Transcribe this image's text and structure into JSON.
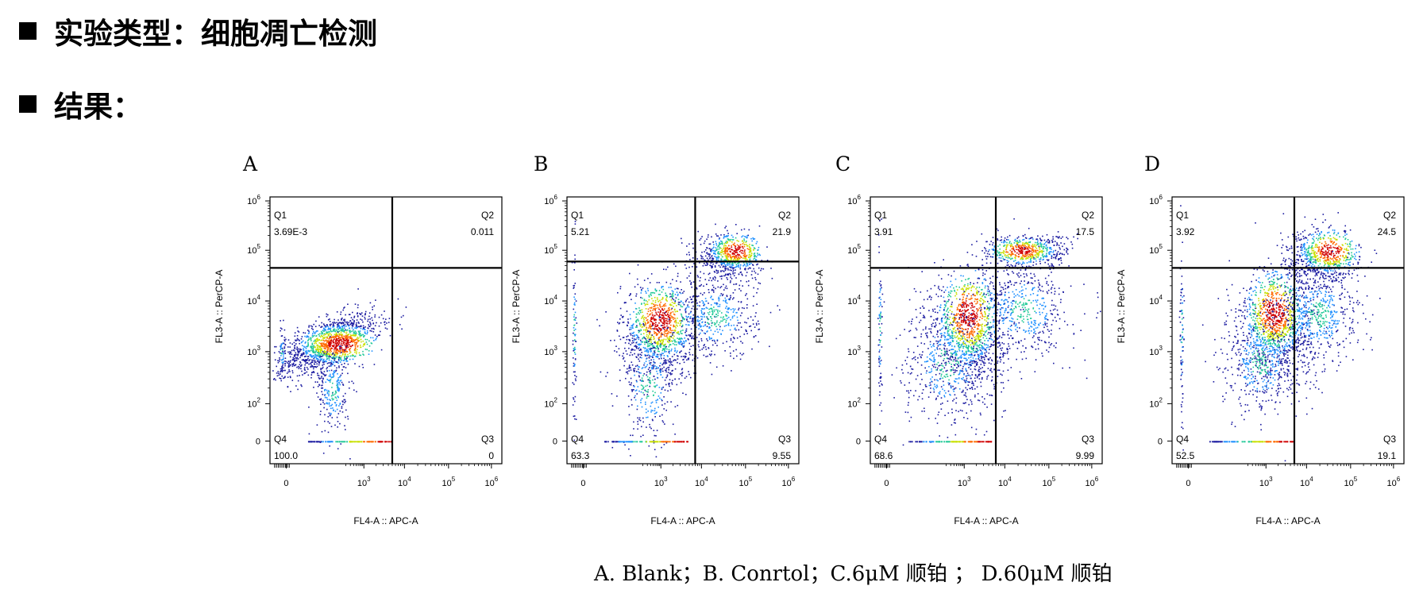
{
  "headings": {
    "experiment": "实验类型：细胞凋亡检测",
    "results": "结果："
  },
  "caption": "A. Blank；B. Conrtol；C.6μM 顺铂 ； D.60μM 顺铂",
  "colors": {
    "density_low": "#1a1aa0",
    "density_mid_low": "#1e90ff",
    "density_mid": "#20c997",
    "density_mid_high": "#c8e000",
    "density_high": "#ff6a00",
    "density_peak": "#d00000",
    "gate_lines": "#000000"
  },
  "chart_data": [
    {
      "type": "scatter",
      "panel": "A",
      "xlabel": "FL4-A :: APC-A",
      "ylabel": "FL3-A :: PerCP-A",
      "x_ticks": [
        "0",
        "10^3",
        "10^4",
        "10^5",
        "10^6"
      ],
      "y_ticks": [
        "0",
        "10^2",
        "10^3",
        "10^4",
        "10^5",
        "10^6"
      ],
      "quadrants": [
        {
          "name": "Q1",
          "value": "3.69E-3"
        },
        {
          "name": "Q2",
          "value": "0.011"
        },
        {
          "name": "Q3",
          "value": "0"
        },
        {
          "name": "Q4",
          "value": "100.0"
        }
      ],
      "gate": {
        "x": 5000,
        "y": 45000
      }
    },
    {
      "type": "scatter",
      "panel": "B",
      "xlabel": "FL4-A :: APC-A",
      "ylabel": "FL3-A :: PerCP-A",
      "x_ticks": [
        "0",
        "10^3",
        "10^4",
        "10^5",
        "10^6"
      ],
      "y_ticks": [
        "0",
        "10^2",
        "10^3",
        "10^4",
        "10^5",
        "10^6"
      ],
      "quadrants": [
        {
          "name": "Q1",
          "value": "5.21"
        },
        {
          "name": "Q2",
          "value": "21.9"
        },
        {
          "name": "Q3",
          "value": "9.55"
        },
        {
          "name": "Q4",
          "value": "63.3"
        }
      ],
      "gate": {
        "x": 7000,
        "y": 60000
      }
    },
    {
      "type": "scatter",
      "panel": "C",
      "xlabel": "FL4-A :: APC-A",
      "ylabel": "FL3-A :: PerCP-A",
      "x_ticks": [
        "0",
        "10^3",
        "10^4",
        "10^5",
        "10^6"
      ],
      "y_ticks": [
        "0",
        "10^2",
        "10^3",
        "10^4",
        "10^5",
        "10^6"
      ],
      "quadrants": [
        {
          "name": "Q1",
          "value": "3.91"
        },
        {
          "name": "Q2",
          "value": "17.5"
        },
        {
          "name": "Q3",
          "value": "9.99"
        },
        {
          "name": "Q4",
          "value": "68.6"
        }
      ],
      "gate": {
        "x": 6000,
        "y": 45000
      }
    },
    {
      "type": "scatter",
      "panel": "D",
      "xlabel": "FL4-A :: APC-A",
      "ylabel": "FL3-A :: PerCP-A",
      "x_ticks": [
        "0",
        "10^3",
        "10^4",
        "10^5",
        "10^6"
      ],
      "y_ticks": [
        "0",
        "10^2",
        "10^3",
        "10^4",
        "10^5",
        "10^6"
      ],
      "quadrants": [
        {
          "name": "Q1",
          "value": "3.92"
        },
        {
          "name": "Q2",
          "value": "24.5"
        },
        {
          "name": "Q3",
          "value": "19.1"
        },
        {
          "name": "Q4",
          "value": "52.5"
        }
      ],
      "gate": {
        "x": 5000,
        "y": 45000
      }
    }
  ]
}
